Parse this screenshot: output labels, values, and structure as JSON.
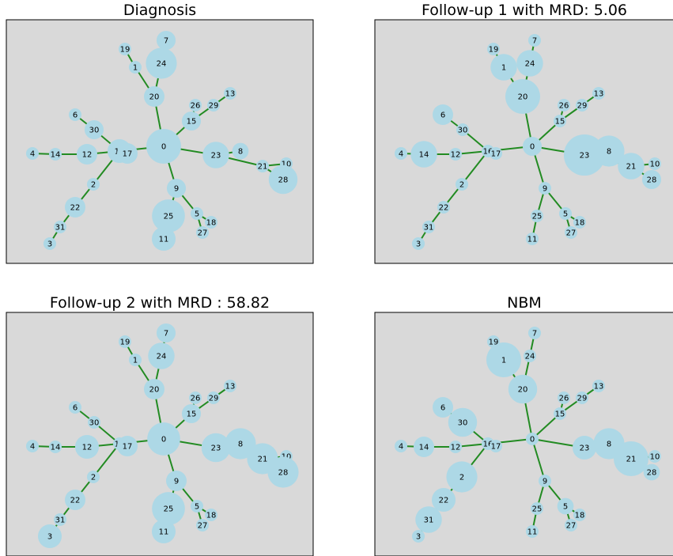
{
  "chart_data": [
    {
      "type": "network",
      "title": "Diagnosis",
      "edges": [
        [
          0,
          20
        ],
        [
          20,
          24
        ],
        [
          20,
          1
        ],
        [
          1,
          19
        ],
        [
          24,
          7
        ],
        [
          0,
          15
        ],
        [
          15,
          29
        ],
        [
          29,
          13
        ],
        [
          15,
          26
        ],
        [
          0,
          16
        ],
        [
          16,
          17
        ],
        [
          16,
          12
        ],
        [
          12,
          14
        ],
        [
          14,
          4
        ],
        [
          16,
          30
        ],
        [
          30,
          6
        ],
        [
          16,
          2
        ],
        [
          2,
          22
        ],
        [
          22,
          31
        ],
        [
          31,
          3
        ],
        [
          0,
          9
        ],
        [
          9,
          25
        ],
        [
          25,
          11
        ],
        [
          9,
          5
        ],
        [
          5,
          18
        ],
        [
          5,
          27
        ],
        [
          0,
          23
        ],
        [
          23,
          8
        ],
        [
          23,
          21
        ],
        [
          21,
          10
        ],
        [
          21,
          28
        ]
      ],
      "nodes": [
        {
          "id": "0",
          "weight": 4
        },
        {
          "id": "1",
          "weight": 0.2
        },
        {
          "id": "2",
          "weight": 0.2
        },
        {
          "id": "3",
          "weight": 0.2
        },
        {
          "id": "4",
          "weight": 0.2
        },
        {
          "id": "5",
          "weight": 0.2
        },
        {
          "id": "6",
          "weight": 0.2
        },
        {
          "id": "7",
          "weight": 0.8
        },
        {
          "id": "8",
          "weight": 0.5
        },
        {
          "id": "9",
          "weight": 0.8
        },
        {
          "id": "10",
          "weight": 0.2
        },
        {
          "id": "11",
          "weight": 1.5
        },
        {
          "id": "12",
          "weight": 1
        },
        {
          "id": "13",
          "weight": 0.2
        },
        {
          "id": "14",
          "weight": 0.2
        },
        {
          "id": "15",
          "weight": 0.8
        },
        {
          "id": "16",
          "weight": 1.5
        },
        {
          "id": "17",
          "weight": 1
        },
        {
          "id": "18",
          "weight": 0.2
        },
        {
          "id": "19",
          "weight": 0.2
        },
        {
          "id": "20",
          "weight": 1
        },
        {
          "id": "21",
          "weight": 0.2
        },
        {
          "id": "22",
          "weight": 1
        },
        {
          "id": "23",
          "weight": 2
        },
        {
          "id": "24",
          "weight": 3
        },
        {
          "id": "25",
          "weight": 3.5
        },
        {
          "id": "26",
          "weight": 0.2
        },
        {
          "id": "27",
          "weight": 0.2
        },
        {
          "id": "28",
          "weight": 2.5
        },
        {
          "id": "29",
          "weight": 0.2
        },
        {
          "id": "30",
          "weight": 0.8
        },
        {
          "id": "31",
          "weight": 0.2
        }
      ]
    },
    {
      "type": "network",
      "title": "Follow-up 1 with MRD: 5.06",
      "edges": [
        [
          0,
          20
        ],
        [
          20,
          24
        ],
        [
          20,
          1
        ],
        [
          1,
          19
        ],
        [
          24,
          7
        ],
        [
          0,
          15
        ],
        [
          15,
          29
        ],
        [
          29,
          13
        ],
        [
          15,
          26
        ],
        [
          0,
          16
        ],
        [
          16,
          17
        ],
        [
          16,
          12
        ],
        [
          12,
          14
        ],
        [
          14,
          4
        ],
        [
          16,
          30
        ],
        [
          30,
          6
        ],
        [
          16,
          2
        ],
        [
          2,
          22
        ],
        [
          22,
          31
        ],
        [
          31,
          3
        ],
        [
          0,
          9
        ],
        [
          9,
          25
        ],
        [
          25,
          11
        ],
        [
          9,
          5
        ],
        [
          5,
          18
        ],
        [
          5,
          27
        ],
        [
          0,
          23
        ],
        [
          23,
          8
        ],
        [
          23,
          21
        ],
        [
          21,
          10
        ],
        [
          21,
          28
        ]
      ],
      "nodes": [
        {
          "id": "0",
          "weight": 0.8
        },
        {
          "id": "1",
          "weight": 2
        },
        {
          "id": "2",
          "weight": 0.2
        },
        {
          "id": "3",
          "weight": 0.2
        },
        {
          "id": "4",
          "weight": 0.2
        },
        {
          "id": "5",
          "weight": 0.2
        },
        {
          "id": "6",
          "weight": 1
        },
        {
          "id": "7",
          "weight": 0.2
        },
        {
          "id": "8",
          "weight": 3
        },
        {
          "id": "9",
          "weight": 0.2
        },
        {
          "id": "10",
          "weight": 0.2
        },
        {
          "id": "11",
          "weight": 0.2
        },
        {
          "id": "12",
          "weight": 0.2
        },
        {
          "id": "13",
          "weight": 0.2
        },
        {
          "id": "14",
          "weight": 2
        },
        {
          "id": "15",
          "weight": 0.2
        },
        {
          "id": "16",
          "weight": 0.2
        },
        {
          "id": "17",
          "weight": 0.2
        },
        {
          "id": "18",
          "weight": 0.2
        },
        {
          "id": "19",
          "weight": 0.2
        },
        {
          "id": "20",
          "weight": 4
        },
        {
          "id": "21",
          "weight": 2
        },
        {
          "id": "22",
          "weight": 0.2
        },
        {
          "id": "23",
          "weight": 6
        },
        {
          "id": "24",
          "weight": 2
        },
        {
          "id": "25",
          "weight": 0.2
        },
        {
          "id": "26",
          "weight": 0.2
        },
        {
          "id": "27",
          "weight": 0.2
        },
        {
          "id": "28",
          "weight": 0.8
        },
        {
          "id": "29",
          "weight": 0.2
        },
        {
          "id": "30",
          "weight": 0.2
        },
        {
          "id": "31",
          "weight": 0.2
        }
      ]
    },
    {
      "type": "network",
      "title": "Follow-up 2 with MRD : 58.82",
      "edges": [
        [
          0,
          20
        ],
        [
          20,
          24
        ],
        [
          20,
          1
        ],
        [
          1,
          19
        ],
        [
          24,
          7
        ],
        [
          0,
          15
        ],
        [
          15,
          29
        ],
        [
          29,
          13
        ],
        [
          15,
          26
        ],
        [
          0,
          16
        ],
        [
          16,
          17
        ],
        [
          16,
          12
        ],
        [
          12,
          14
        ],
        [
          14,
          4
        ],
        [
          16,
          30
        ],
        [
          30,
          6
        ],
        [
          16,
          2
        ],
        [
          2,
          22
        ],
        [
          22,
          31
        ],
        [
          31,
          3
        ],
        [
          0,
          9
        ],
        [
          9,
          25
        ],
        [
          25,
          11
        ],
        [
          9,
          5
        ],
        [
          5,
          18
        ],
        [
          5,
          27
        ],
        [
          0,
          23
        ],
        [
          23,
          8
        ],
        [
          23,
          21
        ],
        [
          21,
          10
        ],
        [
          21,
          28
        ]
      ],
      "nodes": [
        {
          "id": "0",
          "weight": 3.5
        },
        {
          "id": "1",
          "weight": 0.2
        },
        {
          "id": "2",
          "weight": 0.2
        },
        {
          "id": "3",
          "weight": 1.5
        },
        {
          "id": "4",
          "weight": 0.2
        },
        {
          "id": "5",
          "weight": 0.2
        },
        {
          "id": "6",
          "weight": 0.2
        },
        {
          "id": "7",
          "weight": 0.8
        },
        {
          "id": "8",
          "weight": 3
        },
        {
          "id": "9",
          "weight": 1
        },
        {
          "id": "10",
          "weight": 0.2
        },
        {
          "id": "11",
          "weight": 1.5
        },
        {
          "id": "12",
          "weight": 1.5
        },
        {
          "id": "13",
          "weight": 0.2
        },
        {
          "id": "14",
          "weight": 0.2
        },
        {
          "id": "15",
          "weight": 0.8
        },
        {
          "id": "16",
          "weight": 0.2
        },
        {
          "id": "17",
          "weight": 1
        },
        {
          "id": "18",
          "weight": 0.2
        },
        {
          "id": "19",
          "weight": 0.2
        },
        {
          "id": "20",
          "weight": 1
        },
        {
          "id": "21",
          "weight": 3
        },
        {
          "id": "22",
          "weight": 1
        },
        {
          "id": "23",
          "weight": 2.5
        },
        {
          "id": "24",
          "weight": 2
        },
        {
          "id": "25",
          "weight": 3.5
        },
        {
          "id": "26",
          "weight": 0.2
        },
        {
          "id": "27",
          "weight": 0.2
        },
        {
          "id": "28",
          "weight": 3
        },
        {
          "id": "29",
          "weight": 0.2
        },
        {
          "id": "30",
          "weight": 0.2
        },
        {
          "id": "31",
          "weight": 0.2
        }
      ]
    },
    {
      "type": "network",
      "title": "NBM",
      "edges": [
        [
          0,
          20
        ],
        [
          20,
          24
        ],
        [
          20,
          1
        ],
        [
          1,
          19
        ],
        [
          24,
          7
        ],
        [
          0,
          15
        ],
        [
          15,
          29
        ],
        [
          29,
          13
        ],
        [
          15,
          26
        ],
        [
          0,
          16
        ],
        [
          16,
          17
        ],
        [
          16,
          12
        ],
        [
          12,
          14
        ],
        [
          14,
          4
        ],
        [
          16,
          30
        ],
        [
          30,
          6
        ],
        [
          16,
          2
        ],
        [
          2,
          22
        ],
        [
          22,
          31
        ],
        [
          31,
          3
        ],
        [
          0,
          9
        ],
        [
          9,
          25
        ],
        [
          25,
          11
        ],
        [
          9,
          5
        ],
        [
          5,
          18
        ],
        [
          5,
          27
        ],
        [
          0,
          23
        ],
        [
          23,
          8
        ],
        [
          23,
          21
        ],
        [
          21,
          10
        ],
        [
          21,
          28
        ]
      ],
      "nodes": [
        {
          "id": "0",
          "weight": 0.2
        },
        {
          "id": "1",
          "weight": 4
        },
        {
          "id": "2",
          "weight": 3
        },
        {
          "id": "3",
          "weight": 0.2
        },
        {
          "id": "4",
          "weight": 0.2
        },
        {
          "id": "5",
          "weight": 0.5
        },
        {
          "id": "6",
          "weight": 1
        },
        {
          "id": "7",
          "weight": 0.2
        },
        {
          "id": "8",
          "weight": 3
        },
        {
          "id": "9",
          "weight": 0.2
        },
        {
          "id": "10",
          "weight": 0.2
        },
        {
          "id": "11",
          "weight": 0.2
        },
        {
          "id": "12",
          "weight": 0.2
        },
        {
          "id": "13",
          "weight": 0.2
        },
        {
          "id": "14",
          "weight": 1
        },
        {
          "id": "15",
          "weight": 0.2
        },
        {
          "id": "16",
          "weight": 0.2
        },
        {
          "id": "17",
          "weight": 0.2
        },
        {
          "id": "18",
          "weight": 0.2
        },
        {
          "id": "19",
          "weight": 0.2
        },
        {
          "id": "20",
          "weight": 2.5
        },
        {
          "id": "21",
          "weight": 4
        },
        {
          "id": "22",
          "weight": 1.5
        },
        {
          "id": "23",
          "weight": 1.5
        },
        {
          "id": "24",
          "weight": 0.2
        },
        {
          "id": "25",
          "weight": 0.2
        },
        {
          "id": "26",
          "weight": 0.2
        },
        {
          "id": "27",
          "weight": 0.2
        },
        {
          "id": "28",
          "weight": 0.5
        },
        {
          "id": "29",
          "weight": 0.2
        },
        {
          "id": "30",
          "weight": 2.5
        },
        {
          "id": "31",
          "weight": 2
        }
      ]
    }
  ],
  "colors": {
    "node_fill": "#add8e6",
    "edge": "#228b22",
    "panel_bg": "#d9d9d9",
    "panel_border": "#000000"
  }
}
